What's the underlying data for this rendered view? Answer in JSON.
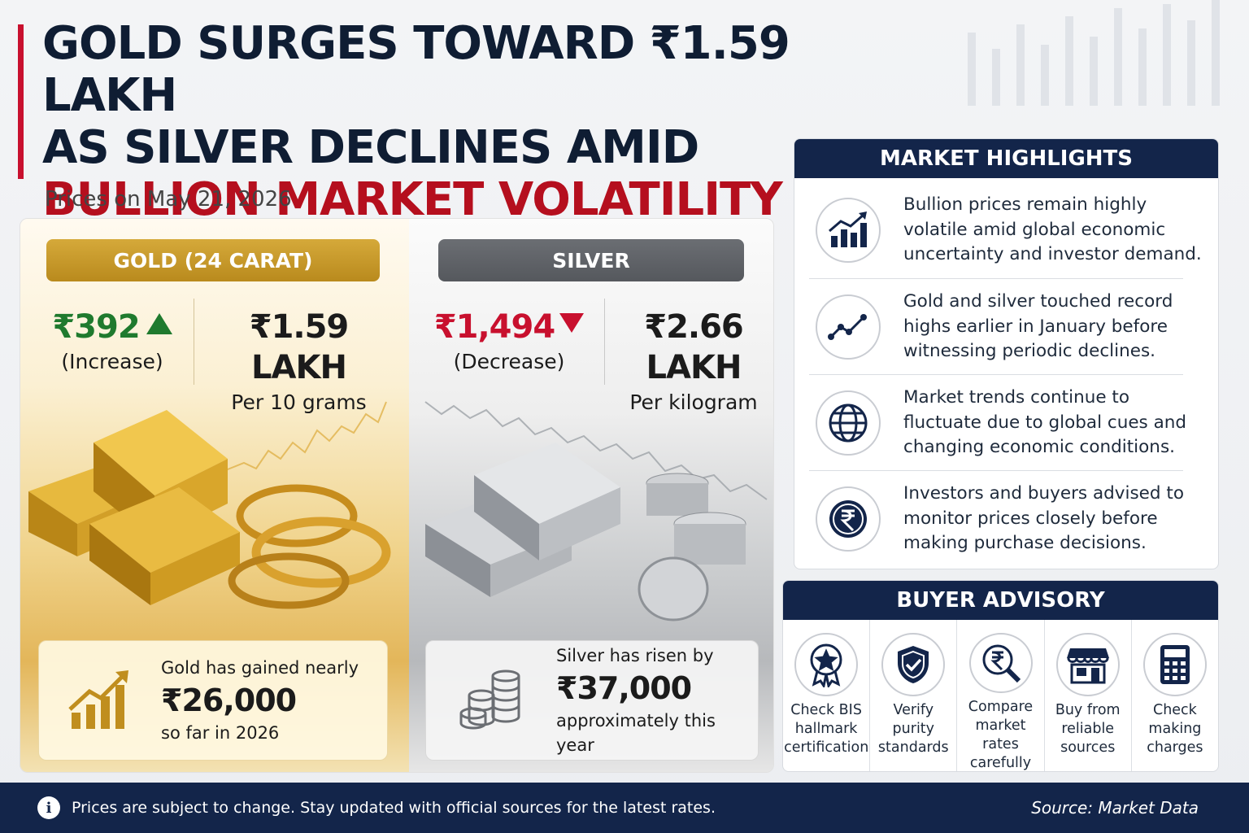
{
  "headline": {
    "line1": "GOLD SURGES TOWARD ₹1.59 LAKH",
    "line2": "AS SILVER DECLINES AMID",
    "line3": "BULLION MARKET VOLATILITY"
  },
  "date_text": "Prices on May 21, 2026",
  "gold": {
    "tag": "GOLD (24 CARAT)",
    "change_value": "₹392",
    "change_label": "(Increase)",
    "price_value": "₹1.59 LAKH",
    "price_unit": "Per 10 grams",
    "note_line1": "Gold has gained nearly",
    "note_amount": "₹26,000",
    "note_line3": "so far in 2026",
    "color": "#c9a02e"
  },
  "silver": {
    "tag": "SILVER",
    "change_value": "₹1,494",
    "change_label": "(Decrease)",
    "price_value": "₹2.66 LAKH",
    "price_unit": "Per kilogram",
    "note_line1": "Silver has risen by",
    "note_amount": "₹37,000",
    "note_line3": "approximately this year",
    "color": "#5f6267"
  },
  "highlights": {
    "title": "MARKET HIGHLIGHTS",
    "items": [
      {
        "icon": "bar-chart-growth-icon",
        "text": "Bullion prices remain highly volatile amid global economic uncertainty and investor demand."
      },
      {
        "icon": "line-trend-icon",
        "text": "Gold and silver touched record highs earlier in January before witnessing periodic declines."
      },
      {
        "icon": "globe-icon",
        "text": "Market trends continue to fluctuate due to global cues and changing economic conditions."
      },
      {
        "icon": "rupee-coin-icon",
        "text": "Investors and buyers advised to monitor prices closely before making purchase decisions."
      }
    ]
  },
  "advisory": {
    "title": "BUYER ADVISORY",
    "items": [
      {
        "icon": "badge-icon",
        "label": "Check BIS hallmark certification"
      },
      {
        "icon": "shield-check-icon",
        "label": "Verify purity standards"
      },
      {
        "icon": "rupee-search-icon",
        "label": "Compare market rates carefully"
      },
      {
        "icon": "store-icon",
        "label": "Buy from reliable sources"
      },
      {
        "icon": "calculator-icon",
        "label": "Check making charges"
      }
    ]
  },
  "footer": {
    "info_icon": "info-icon",
    "text": "Prices are subject to change. Stay updated with official sources for the latest rates.",
    "source": "Source: Market Data"
  },
  "colors": {
    "navy": "#13254a",
    "red": "#b50f1e",
    "green": "#1f7a2e"
  }
}
